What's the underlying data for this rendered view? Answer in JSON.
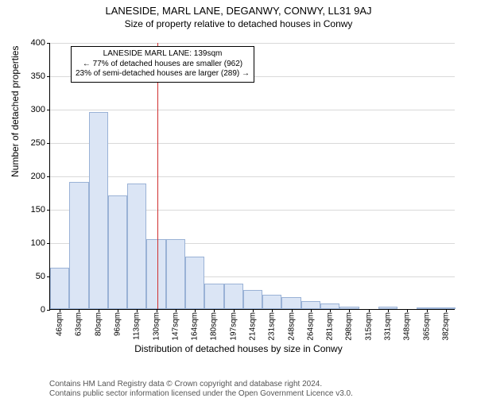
{
  "titles": {
    "line1": "LANESIDE, MARL LANE, DEGANWY, CONWY, LL31 9AJ",
    "line2": "Size of property relative to detached houses in Conwy"
  },
  "chart": {
    "type": "histogram",
    "ylabel": "Number of detached properties",
    "xlabel": "Distribution of detached houses by size in Conwy",
    "ylim": [
      0,
      400
    ],
    "ytick_step": 50,
    "background_color": "#ffffff",
    "grid_color": "#d9d9d9",
    "bar_fill": "#dbe5f5",
    "bar_stroke": "#9ab2d6",
    "ref_line_color": "#d03030",
    "ref_value_sqm": 139,
    "x_start": 46,
    "x_step": 16.7,
    "bar_width_ratio": 1.0,
    "categories": [
      "46sqm",
      "63sqm",
      "80sqm",
      "96sqm",
      "113sqm",
      "130sqm",
      "147sqm",
      "164sqm",
      "180sqm",
      "197sqm",
      "214sqm",
      "231sqm",
      "248sqm",
      "264sqm",
      "281sqm",
      "298sqm",
      "315sqm",
      "331sqm",
      "348sqm",
      "365sqm",
      "382sqm"
    ],
    "values": [
      62,
      190,
      295,
      170,
      188,
      105,
      105,
      78,
      38,
      38,
      28,
      22,
      18,
      12,
      8,
      4,
      0,
      4,
      0,
      2,
      2
    ],
    "annotation": {
      "line1": "LANESIDE MARL LANE: 139sqm",
      "line2": "← 77% of detached houses are smaller (962)",
      "line3": "23% of semi-detached houses are larger (289) →"
    }
  },
  "attribution": {
    "line1": "Contains HM Land Registry data © Crown copyright and database right 2024.",
    "line2": "Contains public sector information licensed under the Open Government Licence v3.0."
  }
}
